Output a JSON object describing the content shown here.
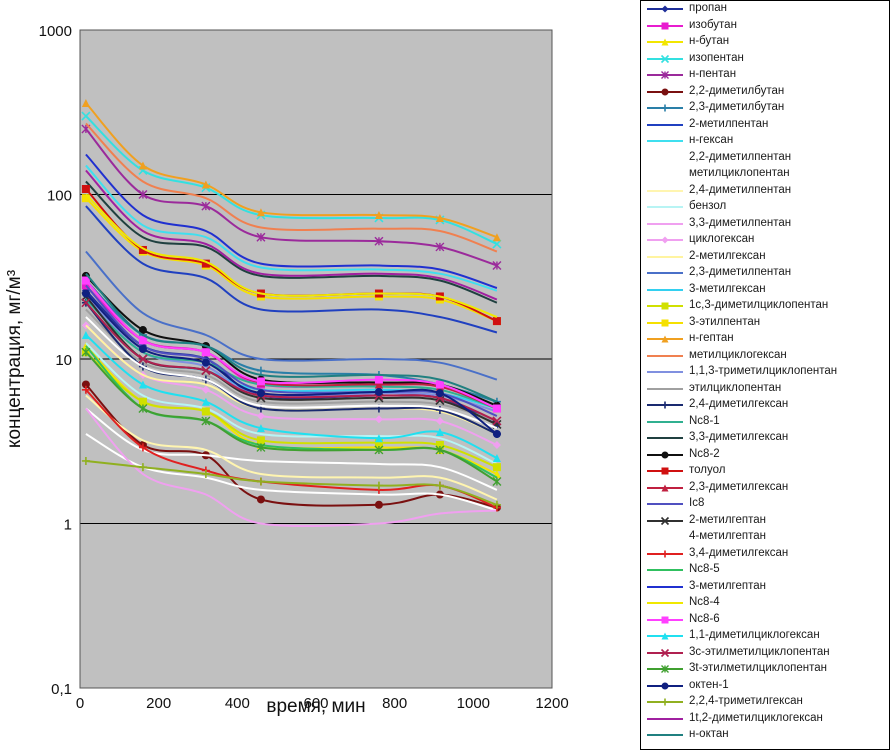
{
  "chart_data": {
    "type": "line",
    "xlabel": "время, мин",
    "ylabel": "концентрация, мг/м³",
    "xlim": [
      0,
      1200
    ],
    "ylim": [
      0.1,
      1000
    ],
    "y_scale": "log",
    "x_ticks": [
      "0",
      "200",
      "400",
      "600",
      "800",
      "1000",
      "1200"
    ],
    "y_ticks": [
      {
        "v": 0.1,
        "label": "0,1"
      },
      {
        "v": 1,
        "label": "1"
      },
      {
        "v": 10,
        "label": "10"
      },
      {
        "v": 100,
        "label": "100"
      },
      {
        "v": 1000,
        "label": "1000"
      }
    ],
    "grid": "horizontal",
    "legend_position": "right",
    "plot_background": "#c0c0c0",
    "x": [
      15,
      160,
      320,
      460,
      760,
      915,
      1060
    ],
    "series": [
      {
        "name": "пропан",
        "color": "#1f2f9a",
        "marker": "diamond",
        "values": [
          26,
          12,
          10,
          6.0,
          6.0,
          5.8,
          4.0
        ]
      },
      {
        "name": "изобутан",
        "color": "#e81ccf",
        "marker": "square",
        "values": [
          28,
          13,
          11,
          7.0,
          7.0,
          6.8,
          5.0
        ]
      },
      {
        "name": "н-бутан",
        "color": "#f2e600",
        "marker": "triangle",
        "values": [
          12,
          5.5,
          4.8,
          3.0,
          2.9,
          2.8,
          2.0
        ]
      },
      {
        "name": "изопентан",
        "color": "#33e0e0",
        "marker": "x",
        "values": [
          300,
          140,
          110,
          75,
          72,
          70,
          50
        ]
      },
      {
        "name": "н-пентан",
        "color": "#9b2a9b",
        "marker": "star",
        "values": [
          250,
          100,
          85,
          55,
          52,
          48,
          37
        ]
      },
      {
        "name": "2,2-диметилбутан",
        "color": "#7a1010",
        "marker": "circle",
        "values": [
          7.0,
          3.0,
          2.6,
          1.4,
          1.3,
          1.5,
          1.25
        ]
      },
      {
        "name": "2,3-диметилбутан",
        "color": "#2a7fa8",
        "marker": "plus",
        "values": [
          30,
          14,
          12,
          8.5,
          8.0,
          7.0,
          5.5
        ]
      },
      {
        "name": "2-метилпентан",
        "color": "#2040c0",
        "marker": "line",
        "values": [
          85,
          38,
          31,
          20,
          20,
          18,
          14.5
        ]
      },
      {
        "name": "н-гексан",
        "color": "#3fdfef",
        "marker": "line",
        "values": [
          150,
          65,
          55,
          36,
          35,
          33,
          26
        ]
      },
      {
        "name": "2,2-диметилпентан",
        "color": "#ffffff",
        "marker": "line",
        "values": [
          5.0,
          2.8,
          2.6,
          2.4,
          2.3,
          2.2,
          1.6
        ]
      },
      {
        "name": "метилциклопентан",
        "color": "#ffffff",
        "marker": "line",
        "values": [
          3.5,
          2.2,
          1.9,
          1.6,
          1.5,
          1.5,
          1.2
        ]
      },
      {
        "name": "2,4-диметилпентан",
        "color": "#fff5b0",
        "marker": "line",
        "values": [
          6.0,
          3.2,
          2.8,
          2.0,
          1.9,
          1.9,
          1.4
        ]
      },
      {
        "name": "бензол",
        "color": "#b8f4f4",
        "marker": "line",
        "values": [
          12.5,
          6.0,
          5.0,
          3.5,
          3.4,
          3.3,
          2.3
        ]
      },
      {
        "name": "3,3-диметилпентан",
        "color": "#f0a0f0",
        "marker": "line",
        "values": [
          5.0,
          2.0,
          1.5,
          1.0,
          1.0,
          1.15,
          1.2
        ]
      },
      {
        "name": "циклогексан",
        "color": "#f0a0f0",
        "marker": "diamond",
        "values": [
          16,
          8.0,
          6.5,
          4.5,
          4.3,
          4.2,
          3.0
        ]
      },
      {
        "name": "2-метилгексан",
        "color": "#fff4a0",
        "marker": "line",
        "values": [
          16,
          8.0,
          7.0,
          5.0,
          5.0,
          4.8,
          3.5
        ]
      },
      {
        "name": "2,3-диметилпентан",
        "color": "#4a70c8",
        "marker": "line",
        "values": [
          45,
          19,
          14,
          10,
          10,
          9.5,
          7.5
        ]
      },
      {
        "name": "3-метилгексан",
        "color": "#33d0f0",
        "marker": "line",
        "values": [
          22,
          10,
          8.5,
          6.5,
          6.5,
          6.2,
          5.0
        ]
      },
      {
        "name": "1с,3-диметилциклопентан",
        "color": "#d0e000",
        "marker": "square",
        "values": [
          11,
          5.5,
          4.8,
          3.2,
          3.1,
          3.0,
          2.2
        ]
      },
      {
        "name": "3-этилпентан",
        "color": "#f5e000",
        "marker": "square",
        "values": [
          95,
          45,
          37,
          24,
          24,
          23,
          17
        ]
      },
      {
        "name": "н-гептан",
        "color": "#f0a020",
        "marker": "triangle",
        "values": [
          360,
          150,
          115,
          78,
          75,
          72,
          55
        ]
      },
      {
        "name": "метилциклогексан",
        "color": "#f08050",
        "marker": "line",
        "values": [
          270,
          120,
          95,
          63,
          62,
          60,
          45
        ]
      },
      {
        "name": "1,1,3-триметилциклопентан",
        "color": "#8090e0",
        "marker": "line",
        "values": [
          24,
          11,
          9.0,
          6.0,
          6.2,
          6.0,
          4.8
        ]
      },
      {
        "name": "этилциклопентан",
        "color": "#a0a0a0",
        "marker": "line",
        "values": [
          20,
          9.5,
          8.0,
          5.5,
          5.5,
          5.3,
          4.2
        ]
      },
      {
        "name": "2,4-диметилгексан",
        "color": "#1a2a70",
        "marker": "plus",
        "values": [
          22,
          9.0,
          7.5,
          5.0,
          5.0,
          4.9,
          3.5
        ]
      },
      {
        "name": "Nc8-1",
        "color": "#30b090",
        "marker": "line",
        "values": [
          23,
          11,
          9.5,
          7.0,
          6.8,
          6.5,
          5.0
        ]
      },
      {
        "name": "3,3-диметилгексан",
        "color": "#204040",
        "marker": "line",
        "values": [
          120,
          55,
          48,
          32,
          32,
          30,
          22
        ]
      },
      {
        "name": "Nc8-2",
        "color": "#101010",
        "marker": "circle",
        "values": [
          32,
          15,
          12,
          7.5,
          7.2,
          7.0,
          5.2
        ]
      },
      {
        "name": "толуол",
        "color": "#d01010",
        "marker": "square",
        "values": [
          108,
          46,
          38,
          25,
          25,
          24,
          17
        ]
      },
      {
        "name": "2,3-диметилгексан",
        "color": "#c02040",
        "marker": "triangle",
        "values": [
          30,
          13,
          11,
          7.2,
          7.0,
          6.8,
          5.0
        ]
      },
      {
        "name": "Ic8",
        "color": "#5050c0",
        "marker": "line",
        "values": [
          28,
          12,
          10,
          6.5,
          6.3,
          6.2,
          4.5
        ]
      },
      {
        "name": "2-метилгептан",
        "color": "#303030",
        "marker": "x",
        "values": [
          24,
          10,
          8.5,
          5.8,
          5.8,
          5.6,
          4.0
        ]
      },
      {
        "name": "4-метилгептан",
        "color": "#ffffff",
        "marker": "line",
        "values": [
          18,
          9.0,
          7.5,
          5.2,
          5.2,
          5.0,
          3.8
        ]
      },
      {
        "name": "3,4-диметилгексан",
        "color": "#e02020",
        "marker": "plus",
        "values": [
          6.5,
          2.9,
          2.1,
          1.8,
          1.6,
          1.7,
          1.25
        ]
      },
      {
        "name": "Nc8-5",
        "color": "#30c060",
        "marker": "line",
        "values": [
          12,
          5.0,
          4.2,
          3.0,
          2.8,
          2.8,
          1.9
        ]
      },
      {
        "name": "3-метилгептан",
        "color": "#2030d0",
        "marker": "line",
        "values": [
          175,
          75,
          60,
          38,
          37,
          35,
          27
        ]
      },
      {
        "name": "Nc8-4",
        "color": "#f0e800",
        "marker": "line",
        "values": [
          100,
          47,
          39,
          25,
          25,
          24,
          18
        ]
      },
      {
        "name": "Nc8-6",
        "color": "#ff40ff",
        "marker": "square",
        "values": [
          30,
          13,
          11,
          7.3,
          7.5,
          7.0,
          5.0
        ]
      },
      {
        "name": "1,1-диметилциклогексан",
        "color": "#20e0f0",
        "marker": "triangle",
        "values": [
          14,
          7.0,
          5.5,
          3.8,
          3.3,
          3.6,
          2.5
        ]
      },
      {
        "name": "3с-этилметилциклопентан",
        "color": "#b02050",
        "marker": "x",
        "values": [
          22,
          10,
          8.5,
          6.0,
          6.0,
          5.8,
          4.2
        ]
      },
      {
        "name": "3t-этилметилциклопентан",
        "color": "#40a030",
        "marker": "star",
        "values": [
          11,
          5.0,
          4.2,
          2.9,
          2.8,
          2.8,
          1.8
        ]
      },
      {
        "name": "октен-1",
        "color": "#102080",
        "marker": "circle",
        "values": [
          25,
          11.5,
          9.5,
          6.2,
          6.3,
          6.2,
          3.5
        ]
      },
      {
        "name": "2,2,4-триметилгексан",
        "color": "#90b020",
        "marker": "plus",
        "values": [
          2.4,
          2.2,
          2.0,
          1.8,
          1.7,
          1.7,
          1.3
        ]
      },
      {
        "name": "1t,2-диметилциклогексан",
        "color": "#a020a0",
        "marker": "line",
        "values": [
          140,
          60,
          50,
          33,
          33,
          31,
          23
        ]
      },
      {
        "name": "н-октан",
        "color": "#208080",
        "marker": "line",
        "values": [
          33,
          14,
          12,
          8.0,
          8.0,
          7.5,
          5.5
        ]
      }
    ]
  }
}
